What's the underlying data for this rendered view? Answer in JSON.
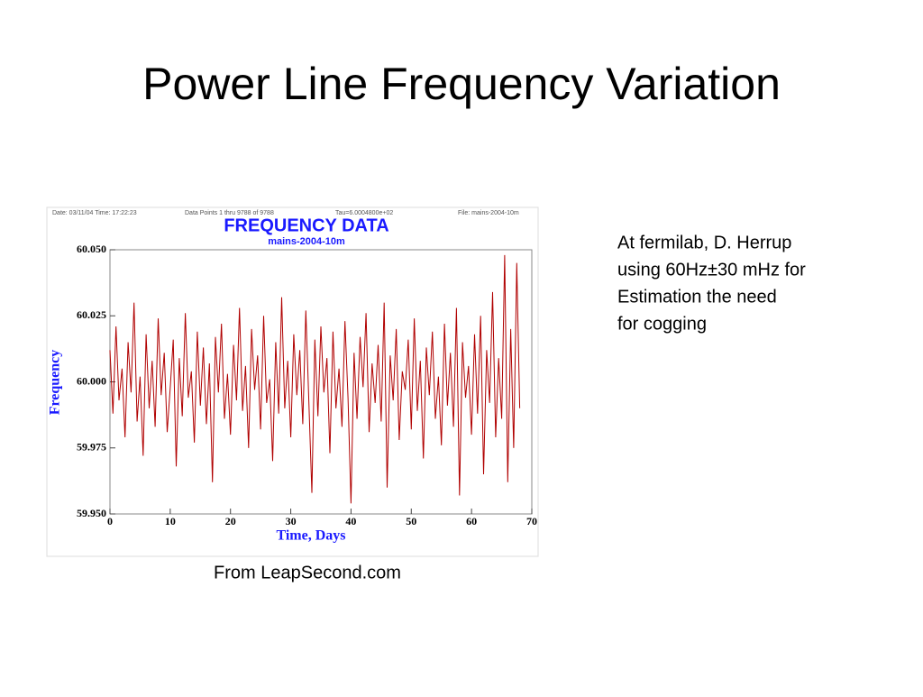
{
  "slide_title": "Power Line Frequency Variation",
  "notes": [
    "At fermilab, D. Herrup",
    "using  60Hz±30 mHz for",
    "Estimation the need",
    "for cogging"
  ],
  "caption": "From LeapSecond.com",
  "chart_data": {
    "type": "line",
    "header": [
      "Date: 03/11/04   Time: 17:22:23",
      "Data Points 1 thru 9788 of 9788",
      "Tau=6.0004800e+02",
      "File: mains-2004-10m"
    ],
    "title": "FREQUENCY DATA",
    "subtitle": "mains-2004-10m",
    "xlabel": "Time,  Days",
    "ylabel": "Frequency",
    "xlim": [
      0,
      70
    ],
    "xticks": [
      0,
      10,
      20,
      30,
      40,
      50,
      60,
      70
    ],
    "ylim": [
      59.95,
      60.05
    ],
    "yticks": [
      {
        "value": 59.95,
        "label": "59.950"
      },
      {
        "value": 59.975,
        "label": "59.975"
      },
      {
        "value": 60,
        "label": "60.000"
      },
      {
        "value": 60.025,
        "label": "60.025"
      },
      {
        "value": 60.05,
        "label": "60.050"
      }
    ],
    "x": [
      0,
      0.5,
      1,
      1.5,
      2,
      2.5,
      3,
      3.5,
      4,
      4.5,
      5,
      5.5,
      6,
      6.5,
      7,
      7.5,
      8,
      8.5,
      9,
      9.5,
      10,
      10.5,
      11,
      11.5,
      12,
      12.5,
      13,
      13.5,
      14,
      14.5,
      15,
      15.5,
      16,
      16.5,
      17,
      17.5,
      18,
      18.5,
      19,
      19.5,
      20,
      20.5,
      21,
      21.5,
      22,
      22.5,
      23,
      23.5,
      24,
      24.5,
      25,
      25.5,
      26,
      26.5,
      27,
      27.5,
      28,
      28.5,
      29,
      29.5,
      30,
      30.5,
      31,
      31.5,
      32,
      32.5,
      33,
      33.5,
      34,
      34.5,
      35,
      35.5,
      36,
      36.5,
      37,
      37.5,
      38,
      38.5,
      39,
      39.5,
      40,
      40.5,
      41,
      41.5,
      42,
      42.5,
      43,
      43.5,
      44,
      44.5,
      45,
      45.5,
      46,
      46.5,
      47,
      47.5,
      48,
      48.5,
      49,
      49.5,
      50,
      50.5,
      51,
      51.5,
      52,
      52.5,
      53,
      53.5,
      54,
      54.5,
      55,
      55.5,
      56,
      56.5,
      57,
      57.5,
      58,
      58.5,
      59,
      59.5,
      60,
      60.5,
      61,
      61.5,
      62,
      62.5,
      63,
      63.5,
      64,
      64.5,
      65,
      65.5,
      66,
      66.5,
      67,
      67.5,
      68
    ],
    "series": [
      {
        "name": "mains-2004-10m",
        "color": "#b00000",
        "values": [
          60.012,
          59.988,
          60.021,
          59.993,
          60.005,
          59.979,
          60.015,
          59.996,
          60.03,
          59.985,
          60.002,
          59.972,
          60.018,
          59.99,
          60.008,
          59.983,
          60.024,
          59.995,
          60.011,
          59.981,
          59.998,
          60.016,
          59.968,
          60.009,
          59.987,
          60.026,
          59.994,
          60.004,
          59.977,
          60.019,
          59.991,
          60.013,
          59.984,
          60.007,
          59.962,
          60.017,
          59.996,
          60.022,
          59.986,
          60.003,
          59.98,
          60.014,
          59.993,
          60.028,
          59.989,
          60.006,
          59.975,
          60.02,
          59.997,
          60.01,
          59.982,
          60.025,
          59.992,
          60.001,
          59.97,
          60.015,
          59.988,
          60.032,
          59.99,
          60.008,
          59.979,
          60.018,
          59.995,
          60.012,
          59.984,
          60.027,
          59.993,
          59.958,
          60.016,
          59.987,
          60.021,
          59.996,
          60.009,
          59.973,
          60.019,
          59.99,
          60.005,
          59.983,
          60.023,
          59.994,
          59.954,
          60.011,
          59.986,
          60.017,
          59.998,
          60.026,
          59.981,
          60.007,
          59.992,
          60.014,
          59.985,
          60.03,
          59.96,
          60.01,
          59.993,
          60.02,
          59.978,
          60.004,
          59.997,
          60.016,
          59.982,
          60.024,
          59.989,
          60.008,
          59.971,
          60.013,
          59.995,
          60.019,
          59.986,
          60.002,
          59.976,
          60.022,
          59.991,
          60.011,
          59.983,
          60.028,
          59.957,
          60.015,
          59.994,
          60.006,
          59.98,
          60.018,
          59.988,
          60.025,
          59.965,
          60.012,
          59.992,
          60.034,
          59.979,
          60.009,
          59.986,
          60.048,
          59.962,
          60.02,
          59.975,
          60.045,
          59.99
        ]
      }
    ]
  }
}
